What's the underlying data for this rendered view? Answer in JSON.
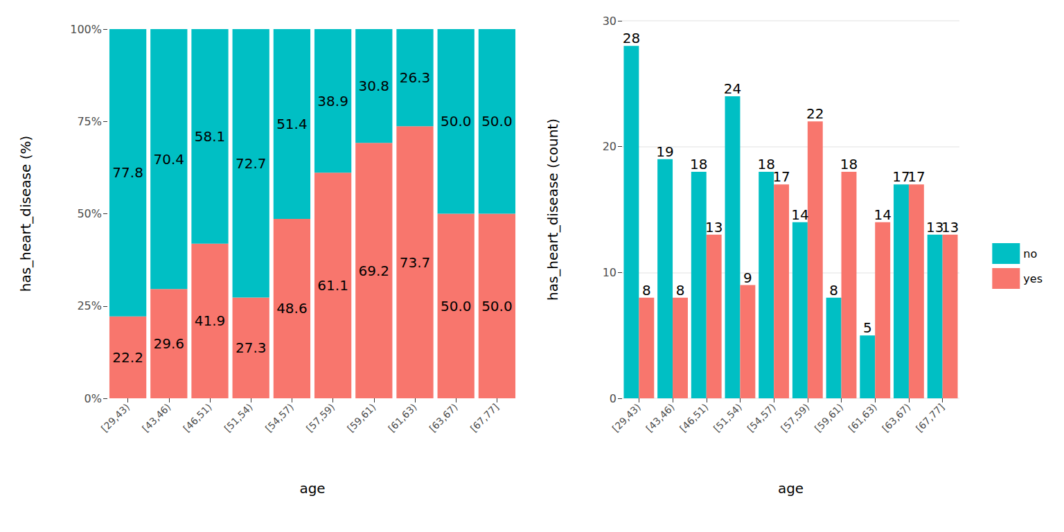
{
  "chart_data": [
    {
      "type": "bar",
      "stacked": true,
      "data_labels": true,
      "grid": false,
      "x_label": "age",
      "y_label": "has_heart_disease (%)",
      "categories": [
        "[29,43)",
        "[43,46)",
        "[46,51)",
        "[51,54)",
        "[54,57)",
        "[57,59)",
        "[59,61)",
        "[61,63)",
        "[63,67)",
        "[67,77]"
      ],
      "ylim": [
        0,
        100
      ],
      "yticks": [
        {
          "value": 0,
          "label": "0%"
        },
        {
          "value": 25,
          "label": "25%"
        },
        {
          "value": 50,
          "label": "50%"
        },
        {
          "value": 75,
          "label": "75%"
        },
        {
          "value": 100,
          "label": "100%"
        }
      ],
      "series": [
        {
          "name": "yes",
          "color": "#F8766D",
          "values": [
            22.2,
            29.6,
            41.9,
            27.3,
            48.6,
            61.1,
            69.2,
            73.7,
            50.0,
            50.0
          ],
          "value_labels": [
            "22.2",
            "29.6",
            "41.9",
            "27.3",
            "48.6",
            "61.1",
            "69.2",
            "73.7",
            "50.0",
            "50.0"
          ]
        },
        {
          "name": "no",
          "color": "#00BFC4",
          "values": [
            77.8,
            70.4,
            58.1,
            72.7,
            51.4,
            38.9,
            30.8,
            26.3,
            50.0,
            50.0
          ],
          "value_labels": [
            "77.8",
            "70.4",
            "58.1",
            "72.7",
            "51.4",
            "38.9",
            "30.8",
            "26.3",
            "50.0",
            "50.0"
          ]
        }
      ]
    },
    {
      "type": "bar",
      "stacked": false,
      "data_labels": true,
      "grid": true,
      "legend": "right",
      "x_label": "age",
      "y_label": "has_heart_disease (count)",
      "categories": [
        "[29,43)",
        "[43,46)",
        "[46,51)",
        "[51,54)",
        "[54,57)",
        "[57,59)",
        "[59,61)",
        "[61,63)",
        "[63,67)",
        "[67,77]"
      ],
      "ylim": [
        0,
        30
      ],
      "yticks": [
        0,
        10,
        20,
        30
      ],
      "series": [
        {
          "name": "no",
          "color": "#00BFC4",
          "values": [
            28,
            19,
            18,
            24,
            18,
            14,
            8,
            5,
            17,
            13
          ]
        },
        {
          "name": "yes",
          "color": "#F8766D",
          "values": [
            8,
            8,
            13,
            9,
            17,
            22,
            18,
            14,
            17,
            13
          ]
        }
      ]
    }
  ]
}
